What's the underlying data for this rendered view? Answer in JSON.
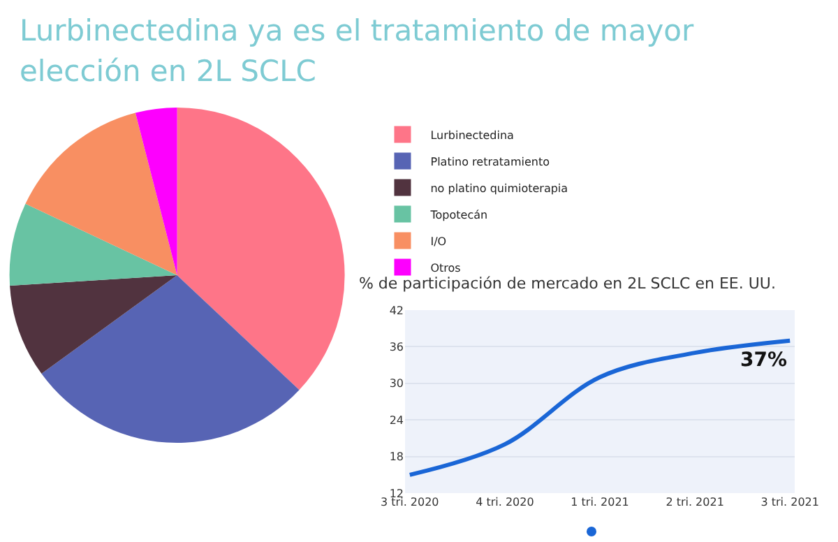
{
  "chart_data": [
    {
      "type": "pie",
      "title": "Lurbinectedina ya es el tratamiento de mayor elección en 2L SCLC",
      "categories": [
        "Lurbinectedina",
        "Platino retratamiento",
        "no platino quimioterapia",
        "Topotecán",
        "I/O",
        "Otros"
      ],
      "values": [
        37,
        28,
        9,
        8,
        14,
        4
      ],
      "colors": [
        "#fe7588",
        "#5764b4",
        "#51333f",
        "#68c3a3",
        "#f88f62",
        "#fd00fe"
      ],
      "legend": "right"
    },
    {
      "type": "line",
      "title": "% de participación de mercado en 2L SCLC en EE. UU.",
      "categories": [
        "3 tri. 2020",
        "4 tri. 2020",
        "1 tri. 2021",
        "2 tri. 2021",
        "3 tri. 2021"
      ],
      "series": [
        {
          "color": "#1a66d6",
          "values": [
            15,
            20,
            31,
            35,
            37
          ]
        }
      ],
      "ylim": [
        12,
        42
      ],
      "yticks": [
        12,
        18,
        24,
        30,
        36,
        42
      ],
      "grid": "y",
      "legend": false,
      "marker": "none",
      "line_style": "solid",
      "annotations": [
        {
          "text": "37%",
          "x": "3 tri. 2021",
          "y": 37
        }
      ]
    }
  ]
}
